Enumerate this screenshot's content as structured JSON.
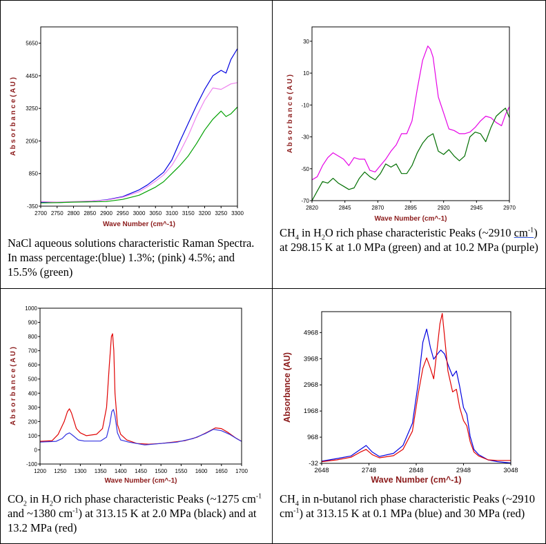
{
  "chart_data": [
    {
      "type": "line",
      "id": "nacl",
      "title": "",
      "xlabel": "Wave Number (cm^-1)",
      "ylabel": "A b s o r b a n c e  ( A U )",
      "xlim": [
        2700,
        3300
      ],
      "ylim": [
        -350,
        6250
      ],
      "xticks": [
        2700,
        2750,
        2800,
        2850,
        2900,
        2950,
        3000,
        3050,
        3100,
        3150,
        3200,
        3250,
        3300
      ],
      "yticks": [
        -350,
        850,
        2050,
        3250,
        4450,
        5650
      ],
      "ytick_labels": [
        "-350",
        "850",
        "2050",
        "3250",
        "4450",
        "5650"
      ],
      "grid": false,
      "series": [
        {
          "name": "1.3% (blue)",
          "color": "#0000e0",
          "x": [
            2700,
            2750,
            2800,
            2850,
            2900,
            2950,
            3000,
            3025,
            3050,
            3075,
            3100,
            3125,
            3150,
            3175,
            3200,
            3225,
            3250,
            3265,
            3280,
            3300
          ],
          "y": [
            -200,
            -220,
            -190,
            -170,
            -120,
            0,
            250,
            430,
            660,
            900,
            1350,
            2050,
            2700,
            3350,
            3950,
            4450,
            4650,
            4550,
            5050,
            5450
          ]
        },
        {
          "name": "4.5% (pink)",
          "color": "#ee82ee",
          "x": [
            2700,
            2750,
            2800,
            2850,
            2900,
            2950,
            3000,
            3025,
            3050,
            3075,
            3100,
            3125,
            3150,
            3175,
            3200,
            3225,
            3250,
            3265,
            3280,
            3300
          ],
          "y": [
            -180,
            -200,
            -180,
            -160,
            -130,
            -20,
            180,
            360,
            570,
            800,
            1150,
            1650,
            2250,
            2950,
            3550,
            4000,
            3950,
            4050,
            4150,
            4200
          ]
        },
        {
          "name": "15.5% (green)",
          "color": "#00a000",
          "x": [
            2700,
            2750,
            2800,
            2850,
            2900,
            2950,
            3000,
            3025,
            3050,
            3075,
            3100,
            3125,
            3150,
            3175,
            3200,
            3225,
            3250,
            3265,
            3280,
            3300
          ],
          "y": [
            -230,
            -220,
            -200,
            -190,
            -180,
            -100,
            50,
            200,
            350,
            550,
            850,
            1150,
            1500,
            1950,
            2450,
            2850,
            3150,
            2950,
            3050,
            3300
          ]
        }
      ],
      "caption": "NaCl aqueous solutions characteristic Raman Spectra. In mass percentage:(blue) 1.3%; (pink) 4.5%; and 15.5% (green)"
    },
    {
      "type": "line",
      "id": "ch4_h2o",
      "title": "",
      "xlabel": "Wave Number (cm^-1)",
      "ylabel": "A b s o r b a n c e  ( A U )",
      "xlim": [
        2820,
        2970
      ],
      "ylim": [
        -70,
        39
      ],
      "xticks": [
        2820,
        2845,
        2870,
        2895,
        2920,
        2945,
        2970
      ],
      "yticks": [
        -70,
        -50,
        -30,
        -10,
        10,
        30
      ],
      "grid": false,
      "series": [
        {
          "name": "10.2 MPa (purple)",
          "color": "#e600e6",
          "x": [
            2820,
            2824,
            2828,
            2832,
            2836,
            2840,
            2844,
            2848,
            2852,
            2856,
            2860,
            2864,
            2868,
            2872,
            2876,
            2880,
            2884,
            2888,
            2892,
            2896,
            2900,
            2904,
            2908,
            2910,
            2912,
            2916,
            2920,
            2924,
            2928,
            2932,
            2936,
            2940,
            2944,
            2948,
            2952,
            2956,
            2960,
            2964,
            2967,
            2970
          ],
          "y": [
            -57,
            -55,
            -48,
            -43,
            -40,
            -42,
            -44,
            -48,
            -43,
            -44,
            -44,
            -51,
            -52,
            -48,
            -44,
            -39,
            -35,
            -28,
            -28,
            -20,
            0,
            18,
            27,
            25,
            20,
            -5,
            -15,
            -25,
            -26,
            -28,
            -28,
            -27,
            -24,
            -20,
            -17,
            -18,
            -21,
            -23,
            -16,
            -11
          ]
        },
        {
          "name": "1.0 MPa (green)",
          "color": "#006e00",
          "x": [
            2820,
            2824,
            2828,
            2832,
            2836,
            2840,
            2844,
            2848,
            2852,
            2856,
            2860,
            2864,
            2868,
            2872,
            2876,
            2880,
            2884,
            2888,
            2892,
            2896,
            2900,
            2904,
            2908,
            2912,
            2916,
            2920,
            2924,
            2928,
            2932,
            2936,
            2940,
            2944,
            2948,
            2952,
            2956,
            2960,
            2964,
            2967,
            2970
          ],
          "y": [
            -70,
            -64,
            -58,
            -59,
            -56,
            -59,
            -61,
            -63,
            -62,
            -56,
            -52,
            -55,
            -57,
            -53,
            -47,
            -49,
            -47,
            -53,
            -53,
            -48,
            -40,
            -34,
            -30,
            -28,
            -39,
            -41,
            -38,
            -42,
            -45,
            -42,
            -30,
            -27,
            -28,
            -33,
            -24,
            -17,
            -14,
            -12,
            -18
          ]
        }
      ],
      "caption_parts": {
        "a": "CH",
        "a_sub": "4",
        "b": " in H",
        "b_sub": "2",
        "c": "O rich phase characteristic Peaks (~2910 ",
        "d": "cm",
        "d_sup": "-1",
        "e": ") at 298.15 K at 1.0 MPa (green) and at 10.2 MPa (purple)"
      }
    },
    {
      "type": "line",
      "id": "co2_h2o",
      "title": "",
      "xlabel": "Wave Number (cm^-1)",
      "ylabel": "A b s o r b a n c e  ( A U )",
      "xlim": [
        1200,
        1700
      ],
      "ylim": [
        -100,
        1000
      ],
      "xticks": [
        1200,
        1250,
        1300,
        1350,
        1400,
        1450,
        1500,
        1550,
        1600,
        1650,
        1700
      ],
      "yticks": [
        -100,
        0,
        100,
        200,
        300,
        400,
        500,
        600,
        700,
        800,
        900,
        1000
      ],
      "grid": false,
      "series": [
        {
          "name": "13.2 MPa (red)",
          "color": "#e00000",
          "x": [
            1200,
            1230,
            1245,
            1260,
            1268,
            1273,
            1278,
            1290,
            1300,
            1315,
            1340,
            1355,
            1365,
            1372,
            1377,
            1380,
            1383,
            1386,
            1392,
            1400,
            1415,
            1440,
            1470,
            1500,
            1530,
            1560,
            1590,
            1615,
            1635,
            1650,
            1665,
            1685,
            1700
          ],
          "y": [
            60,
            65,
            110,
            200,
            270,
            290,
            260,
            150,
            120,
            100,
            110,
            150,
            300,
            600,
            800,
            820,
            700,
            400,
            180,
            110,
            70,
            45,
            40,
            45,
            55,
            65,
            90,
            125,
            155,
            150,
            125,
            85,
            60
          ]
        },
        {
          "name": "2.0 MPa (black/blue)",
          "color": "#3030e0",
          "x": [
            1200,
            1240,
            1255,
            1265,
            1273,
            1280,
            1295,
            1310,
            1350,
            1365,
            1373,
            1378,
            1382,
            1386,
            1392,
            1400,
            1420,
            1460,
            1500,
            1540,
            1580,
            1610,
            1630,
            1650,
            1670,
            1690,
            1700
          ],
          "y": [
            55,
            60,
            80,
            110,
            120,
            105,
            70,
            62,
            62,
            90,
            180,
            270,
            285,
            240,
            120,
            70,
            55,
            35,
            45,
            55,
            80,
            115,
            145,
            135,
            110,
            75,
            60
          ]
        }
      ],
      "caption_parts": {
        "a": "CO",
        "a_sub": "2",
        "b": " in H",
        "b_sub": "2",
        "c": "O rich phase characteristic Peaks (~1275 cm",
        "c_sup": "-1",
        "d": " and ~1380 cm",
        "d_sup": "-1",
        "e": ") at 313.15 K at 2.0 MPa (black) and at 13.2 MPa (red)"
      }
    },
    {
      "type": "line",
      "id": "ch4_butanol",
      "title": "",
      "xlabel": "Wave Number (cm^-1)",
      "ylabel": "Absorbance (AU)",
      "xlim": [
        2648,
        3048
      ],
      "ylim": [
        -32,
        5768
      ],
      "xticks": [
        2648,
        2748,
        2848,
        2948,
        3048
      ],
      "yticks": [
        -32,
        968,
        1968,
        2968,
        3968,
        4968
      ],
      "grid": false,
      "series": [
        {
          "name": "0.1 MPa (blue)",
          "color": "#0000e0",
          "x": [
            2648,
            2680,
            2710,
            2730,
            2742,
            2755,
            2770,
            2800,
            2820,
            2840,
            2852,
            2862,
            2870,
            2878,
            2885,
            2893,
            2900,
            2908,
            2916,
            2925,
            2933,
            2940,
            2948,
            2955,
            2962,
            2970,
            2980,
            3000,
            3020,
            3048
          ],
          "y": [
            50,
            150,
            250,
            500,
            650,
            400,
            230,
            350,
            650,
            1500,
            3000,
            4600,
            5100,
            4400,
            3950,
            4150,
            4300,
            4150,
            3700,
            3300,
            3500,
            2900,
            2100,
            1850,
            1000,
            500,
            300,
            100,
            30,
            -20
          ]
        },
        {
          "name": "30 MPa (red)",
          "color": "#e00000",
          "x": [
            2648,
            2680,
            2710,
            2730,
            2742,
            2755,
            2770,
            2800,
            2820,
            2840,
            2852,
            2862,
            2870,
            2878,
            2885,
            2892,
            2898,
            2903,
            2908,
            2915,
            2925,
            2933,
            2940,
            2948,
            2955,
            2962,
            2970,
            2980,
            3000,
            3020,
            3048
          ],
          "y": [
            30,
            100,
            200,
            400,
            500,
            300,
            180,
            260,
            500,
            1200,
            2600,
            3600,
            4000,
            3600,
            3200,
            4300,
            5300,
            5700,
            4800,
            3500,
            2700,
            2800,
            2100,
            1600,
            1400,
            800,
            400,
            250,
            100,
            80,
            80
          ]
        }
      ],
      "caption_parts": {
        "a": "CH",
        "a_sub": "4",
        "b": " in n-butanol rich phase characteristic Peaks (~2910 cm",
        "b_sup": "-1",
        "c": ") at 313.15 K at 0.1 MPa (blue) and 30 MPa (red)"
      }
    }
  ]
}
